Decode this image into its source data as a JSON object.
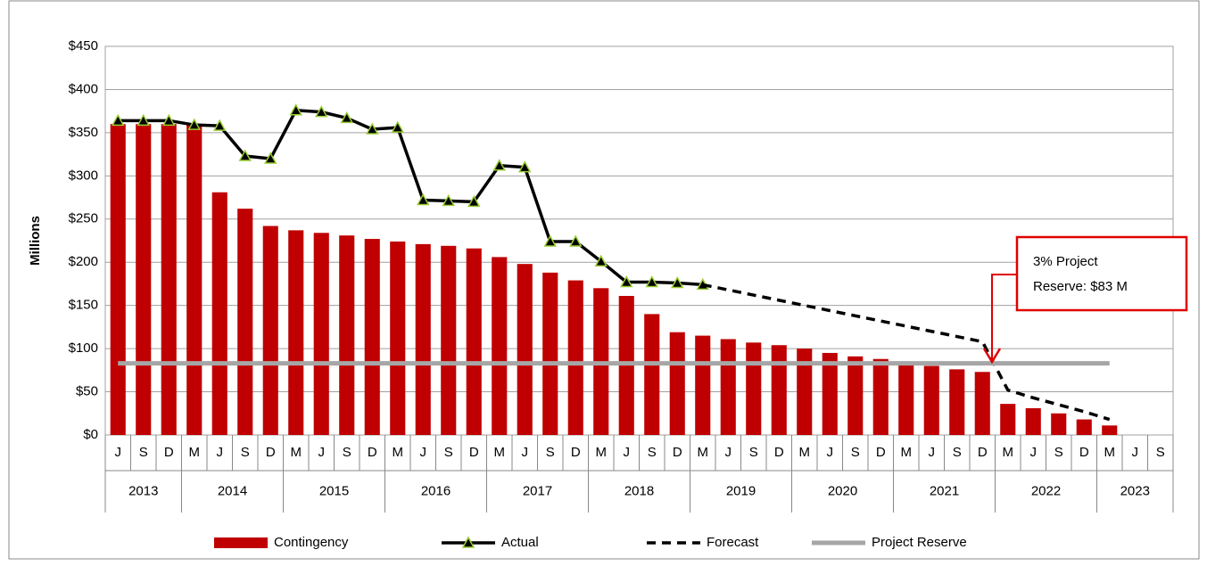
{
  "chart_data": {
    "type": "combo",
    "y_label": "Millions",
    "categories": [
      "J",
      "S",
      "D",
      "M",
      "J",
      "S",
      "D",
      "M",
      "J",
      "S",
      "D",
      "M",
      "J",
      "S",
      "D",
      "M",
      "J",
      "S",
      "D",
      "M",
      "J",
      "S",
      "D",
      "M",
      "J",
      "S",
      "D",
      "M",
      "J",
      "S",
      "D",
      "M",
      "J",
      "S",
      "D",
      "M",
      "J",
      "S",
      "D",
      "M",
      "J",
      "S"
    ],
    "years": [
      "2013",
      null,
      null,
      "2014",
      null,
      null,
      null,
      "2015",
      null,
      null,
      null,
      "2016",
      null,
      null,
      null,
      "2017",
      null,
      null,
      null,
      "2018",
      null,
      null,
      null,
      "2019",
      null,
      null,
      null,
      "2020",
      null,
      null,
      null,
      "2021",
      null,
      null,
      null,
      "2022",
      null,
      null,
      null,
      "2023",
      null,
      null
    ],
    "ylim": [
      0,
      450
    ],
    "yticks": [
      {
        "value": 0,
        "label": "$0"
      },
      {
        "value": 50,
        "label": "$50"
      },
      {
        "value": 100,
        "label": "$100"
      },
      {
        "value": 150,
        "label": "$150"
      },
      {
        "value": 200,
        "label": "$200"
      },
      {
        "value": 250,
        "label": "$250"
      },
      {
        "value": 300,
        "label": "$300"
      },
      {
        "value": 350,
        "label": "$350"
      },
      {
        "value": 400,
        "label": "$400"
      },
      {
        "value": 450,
        "label": "$450"
      }
    ],
    "grid": true,
    "legend": "bottom",
    "series": [
      {
        "name": "Contingency",
        "type": "bar",
        "color": "#c00000",
        "values": [
          360,
          360,
          360,
          360,
          281,
          262,
          242,
          237,
          234,
          231,
          227,
          224,
          221,
          219,
          216,
          206,
          198,
          188,
          179,
          170,
          161,
          140,
          119,
          115,
          111,
          107,
          104,
          100,
          95,
          91,
          88,
          83,
          80,
          76,
          73,
          36,
          31,
          25,
          18,
          11,
          null,
          null
        ]
      },
      {
        "name": "Actual",
        "type": "line",
        "color": "#000000",
        "marker": "triangle",
        "marker_color": "#9acd32",
        "values": [
          364,
          364,
          364,
          359,
          358,
          323,
          320,
          376,
          374,
          367,
          354,
          356,
          272,
          271,
          270,
          312,
          310,
          224,
          224,
          201,
          177,
          177,
          176,
          174,
          null,
          null,
          null,
          null,
          null,
          null,
          null,
          null,
          null,
          null,
          null,
          null,
          null,
          null,
          null,
          null,
          null,
          null
        ]
      },
      {
        "name": "Forecast",
        "type": "line",
        "color": "#000000",
        "dashed": true,
        "values": [
          null,
          null,
          null,
          null,
          null,
          null,
          null,
          null,
          null,
          null,
          null,
          null,
          null,
          null,
          null,
          null,
          null,
          null,
          null,
          null,
          null,
          null,
          null,
          174,
          168,
          162,
          156,
          150,
          144,
          138,
          132,
          126,
          120,
          114,
          108,
          52,
          43,
          35,
          27,
          18,
          null,
          null
        ]
      },
      {
        "name": "Project Reserve",
        "type": "line",
        "color": "#a6a6a6",
        "width": 5,
        "values": [
          83,
          83,
          83,
          83,
          83,
          83,
          83,
          83,
          83,
          83,
          83,
          83,
          83,
          83,
          83,
          83,
          83,
          83,
          83,
          83,
          83,
          83,
          83,
          83,
          83,
          83,
          83,
          83,
          83,
          83,
          83,
          83,
          83,
          83,
          83,
          83,
          83,
          83,
          83,
          83,
          null,
          null
        ]
      }
    ],
    "annotation": {
      "lines": [
        "3% Project",
        "Reserve: $83 M"
      ],
      "color": "#e00000"
    }
  }
}
